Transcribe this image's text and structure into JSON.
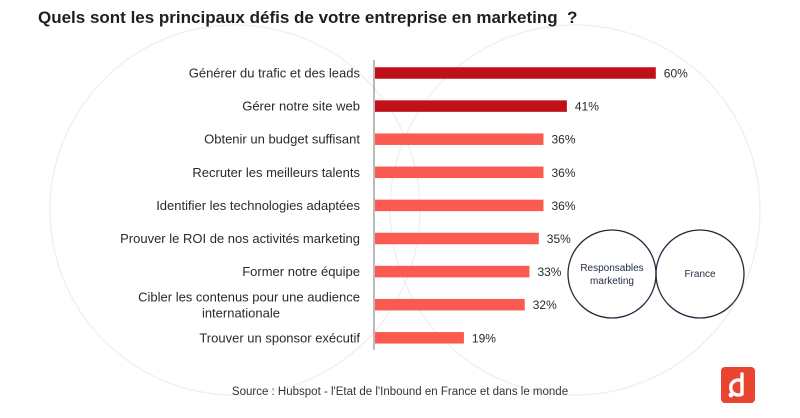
{
  "title": "Quels sont les principaux défis de votre entreprise en marketing  ?",
  "source": "Source : Hubspot -  l'Etat de l'Inbound en France et dans le monde",
  "venn": {
    "left_label": "Responsables marketing",
    "right_label": "France"
  },
  "colors": {
    "highlight": "#c0101a",
    "bar": "#fb5a50",
    "axis": "#777777",
    "venn_stroke": "#1e2b3c",
    "logo": "#e8442f"
  },
  "chart_data": {
    "type": "bar",
    "orientation": "horizontal",
    "title": "Quels sont les principaux défis de votre entreprise en marketing  ?",
    "xlabel": "",
    "ylabel": "",
    "xlim": [
      0,
      100
    ],
    "grid": false,
    "categories": [
      "Générer du trafic et des leads",
      "Gérer notre site web",
      "Obtenir un budget suffisant",
      "Recruter les meilleurs talents",
      "Identifier les technologies adaptées",
      "Prouver le ROI de nos activités marketing",
      "Former notre équipe",
      "Cibler les contenus pour une audience internationale",
      "Trouver un sponsor exécutif"
    ],
    "values": [
      60,
      41,
      36,
      36,
      36,
      35,
      33,
      32,
      19
    ],
    "data_labels": [
      "60%",
      "41%",
      "36%",
      "36%",
      "36%",
      "35%",
      "33%",
      "32%",
      "19%"
    ],
    "highlighted": [
      true,
      true,
      false,
      false,
      false,
      false,
      false,
      false,
      false
    ]
  }
}
